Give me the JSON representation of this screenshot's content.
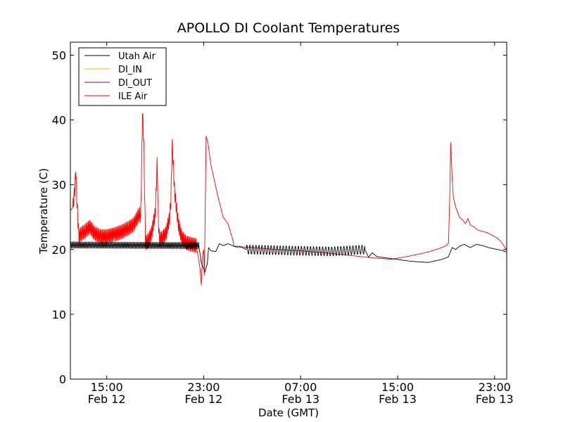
{
  "chart_data": {
    "type": "line",
    "title": "APOLLO DI Coolant Temperatures",
    "xlabel": "Date (GMT)",
    "ylabel": "Temperature (C)",
    "x_unit": "hours (GMT, Feb 12 00:00 = 0)",
    "xlim": [
      12,
      48
    ],
    "ylim": [
      0,
      52
    ],
    "x_ticks": [
      {
        "x": 15,
        "time": "15:00",
        "date": "Feb 12"
      },
      {
        "x": 23,
        "time": "23:00",
        "date": "Feb 12"
      },
      {
        "x": 31,
        "time": "07:00",
        "date": "Feb 13"
      },
      {
        "x": 39,
        "time": "15:00",
        "date": "Feb 13"
      },
      {
        "x": 47,
        "time": "23:00",
        "date": "Feb 13"
      }
    ],
    "y_ticks": [
      0,
      10,
      20,
      30,
      40,
      50
    ],
    "grid": false,
    "legend_position": "top-left",
    "series": [
      {
        "name": "Utah Air",
        "color": "#000000",
        "oscillation": {
          "from": 12,
          "to": 22.6,
          "amplitude": 0.5,
          "period": 0.12
        },
        "oscillation2": {
          "from": 26.5,
          "to": 36.3,
          "amplitude": 0.7,
          "period": 0.25
        },
        "x": [
          12.0,
          22.6,
          22.8,
          23.1,
          23.3,
          23.4,
          23.6,
          24.0,
          24.3,
          24.6,
          25.0,
          25.5,
          26.0,
          26.5,
          29.0,
          31.0,
          33.5,
          36.3,
          36.6,
          36.9,
          37.3,
          38.5,
          40.0,
          41.5,
          42.5,
          43.0,
          43.2,
          43.5,
          43.8,
          44.1,
          44.5,
          45.0,
          45.5,
          46.0,
          46.5,
          47.0,
          47.5,
          48.0
        ],
        "y": [
          20.7,
          20.6,
          18.0,
          16.5,
          17.8,
          20.3,
          19.8,
          19.7,
          20.9,
          20.6,
          20.9,
          20.5,
          20.5,
          20.0,
          19.9,
          19.8,
          19.7,
          20.0,
          18.8,
          19.5,
          18.9,
          18.6,
          18.2,
          18.0,
          18.4,
          18.7,
          18.9,
          20.3,
          20.0,
          20.5,
          20.8,
          20.3,
          20.8,
          20.6,
          20.3,
          20.1,
          19.9,
          19.6
        ]
      },
      {
        "name": "DI_IN",
        "color": "#f5b800",
        "x": [],
        "y": []
      },
      {
        "name": "DI_OUT",
        "color": "#800080",
        "x": [],
        "y": []
      },
      {
        "name": "ILE Air",
        "color": "#ff0000",
        "oscillation": {
          "from": 12.2,
          "to": 22.4,
          "amplitude": 1.1,
          "period": 0.09
        },
        "x": [
          12.0,
          12.2,
          12.35,
          12.45,
          12.55,
          12.7,
          12.95,
          13.2,
          13.6,
          14.0,
          14.5,
          15.0,
          15.6,
          16.2,
          16.8,
          17.2,
          17.7,
          17.8,
          17.87,
          17.95,
          18.05,
          18.2,
          18.4,
          18.7,
          19.0,
          19.1,
          19.15,
          19.2,
          19.25,
          19.35,
          19.6,
          19.9,
          20.2,
          20.3,
          20.4,
          20.6,
          20.9,
          21.2,
          21.6,
          22.0,
          22.4,
          22.7,
          22.8,
          22.9,
          23.0,
          23.05,
          23.1,
          23.2,
          23.35,
          23.6,
          23.9,
          24.2,
          24.6,
          25.0,
          25.4,
          25.5,
          25.8,
          26.2,
          27.0,
          29.0,
          31.0,
          33.0,
          35.0,
          37.0,
          38.5,
          40.0,
          41.5,
          42.5,
          43.0,
          43.2,
          43.3,
          43.38,
          43.5,
          43.6,
          43.8,
          44.1,
          44.4,
          44.6,
          44.8,
          45.0,
          45.3,
          45.6,
          46.0,
          46.4,
          46.8,
          47.2,
          47.5,
          47.8,
          48.0
        ],
        "y": [
          26.0,
          26.5,
          29.0,
          32.0,
          27.0,
          22.0,
          22.5,
          22.8,
          23.5,
          22.5,
          22.0,
          22.0,
          22.3,
          22.7,
          23.3,
          23.8,
          25.5,
          25.0,
          32.0,
          41.0,
          37.0,
          21.0,
          21.3,
          22.5,
          25.5,
          30.0,
          33.5,
          30.0,
          25.0,
          21.5,
          21.8,
          22.5,
          25.0,
          28.0,
          36.5,
          29.0,
          24.0,
          21.8,
          21.0,
          20.8,
          20.6,
          17.0,
          14.5,
          19.0,
          20.0,
          16.0,
          22.0,
          37.5,
          36.5,
          33.0,
          30.5,
          28.0,
          25.0,
          24.0,
          21.5,
          20.5,
          20.3,
          20.4,
          20.3,
          20.0,
          19.8,
          19.5,
          19.1,
          18.7,
          18.5,
          19.0,
          19.6,
          20.2,
          20.6,
          21.0,
          28.0,
          36.5,
          31.0,
          28.0,
          26.5,
          25.0,
          24.5,
          24.0,
          24.8,
          23.8,
          23.5,
          23.0,
          22.8,
          22.6,
          22.2,
          21.8,
          21.3,
          20.5,
          20.0
        ]
      }
    ]
  }
}
